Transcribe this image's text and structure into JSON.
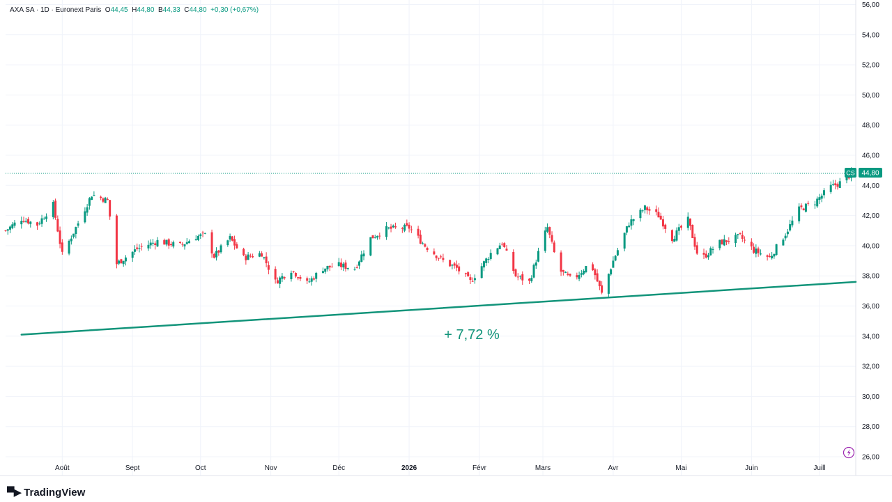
{
  "legend": {
    "symbol": "AXA SA",
    "sep1": "·",
    "interval": "1D",
    "sep2": "·",
    "exchange": "Euronext Paris",
    "open_label": "O",
    "open": "44,45",
    "high_label": "H",
    "high": "44,80",
    "low_label": "B",
    "low": "44,33",
    "close_label": "C",
    "close": "44,80",
    "change": "+0,30 (+0,67%)"
  },
  "price_tag": {
    "label": "CS",
    "value": "44,80"
  },
  "annotation": {
    "text": "+ 7,72 %"
  },
  "footer": {
    "brand": "TradingView"
  },
  "colors": {
    "up": "#089981",
    "down": "#f23645",
    "grid": "#f0f3fa",
    "trend": "#12947a"
  },
  "chart_data": {
    "type": "candlestick",
    "y_axis": {
      "min": 26,
      "max": 56,
      "ticks": [
        "56,00",
        "54,00",
        "52,00",
        "50,00",
        "48,00",
        "46,00",
        "44,00",
        "42,00",
        "40,00",
        "38,00",
        "36,00",
        "34,00",
        "32,00",
        "30,00",
        "28,00",
        "26,00"
      ]
    },
    "x_axis": {
      "start": "2025-07-07",
      "end": "2026-07-17",
      "ticks": [
        {
          "date": "2025-08-01",
          "label": "Août"
        },
        {
          "date": "2025-09-01",
          "label": "Sept"
        },
        {
          "date": "2025-10-01",
          "label": "Oct"
        },
        {
          "date": "2025-11-01",
          "label": "Nov"
        },
        {
          "date": "2025-12-01",
          "label": "Déc"
        },
        {
          "date": "2026-01-01",
          "label": "2026"
        },
        {
          "date": "2026-02-01",
          "label": "Févr"
        },
        {
          "date": "2026-03-01",
          "label": "Mars"
        },
        {
          "date": "2026-04-01",
          "label": "Avr"
        },
        {
          "date": "2026-05-01",
          "label": "Mai"
        },
        {
          "date": "2026-06-01",
          "label": "Juin"
        },
        {
          "date": "2026-07-01",
          "label": "Juill"
        }
      ]
    },
    "close_path": [
      [
        "2025-07-07",
        41.0
      ],
      [
        "2025-07-14",
        41.8
      ],
      [
        "2025-07-21",
        41.4
      ],
      [
        "2025-07-28",
        42.7
      ],
      [
        "2025-08-01",
        39.4
      ],
      [
        "2025-08-08",
        41.5
      ],
      [
        "2025-08-14",
        43.4
      ],
      [
        "2025-08-21",
        43.0
      ],
      [
        "2025-08-25",
        38.8
      ],
      [
        "2025-09-03",
        39.8
      ],
      [
        "2025-09-12",
        40.3
      ],
      [
        "2025-09-22",
        40.0
      ],
      [
        "2025-09-29",
        40.6
      ],
      [
        "2025-10-03",
        40.7
      ],
      [
        "2025-10-07",
        39.3
      ],
      [
        "2025-10-14",
        40.5
      ],
      [
        "2025-10-20",
        39.2
      ],
      [
        "2025-10-28",
        39.5
      ],
      [
        "2025-11-03",
        37.6
      ],
      [
        "2025-11-10",
        38.4
      ],
      [
        "2025-11-17",
        37.5
      ],
      [
        "2025-11-24",
        38.5
      ],
      [
        "2025-12-01",
        38.7
      ],
      [
        "2025-12-08",
        38.5
      ],
      [
        "2025-12-15",
        40.5
      ],
      [
        "2025-12-22",
        41.1
      ],
      [
        "2026-01-01",
        41.2
      ],
      [
        "2026-01-08",
        40.0
      ],
      [
        "2026-01-16",
        39.0
      ],
      [
        "2026-01-22",
        38.5
      ],
      [
        "2026-01-28",
        37.6
      ],
      [
        "2026-02-06",
        39.5
      ],
      [
        "2026-02-11",
        40.2
      ],
      [
        "2026-02-17",
        38.0
      ],
      [
        "2026-02-23",
        37.6
      ],
      [
        "2026-03-01",
        40.5
      ],
      [
        "2026-03-03",
        41.2
      ],
      [
        "2026-03-08",
        38.4
      ],
      [
        "2026-03-14",
        37.7
      ],
      [
        "2026-03-22",
        38.9
      ],
      [
        "2026-03-27",
        36.8
      ],
      [
        "2026-04-01",
        39.0
      ],
      [
        "2026-04-08",
        41.5
      ],
      [
        "2026-04-15",
        42.5
      ],
      [
        "2026-04-21",
        42.0
      ],
      [
        "2026-04-27",
        40.5
      ],
      [
        "2026-05-04",
        41.7
      ],
      [
        "2026-05-09",
        39.0
      ],
      [
        "2026-05-18",
        40.2
      ],
      [
        "2026-05-27",
        40.6
      ],
      [
        "2026-06-02",
        39.7
      ],
      [
        "2026-06-09",
        39.2
      ],
      [
        "2026-06-16",
        40.8
      ],
      [
        "2026-06-22",
        42.4
      ],
      [
        "2026-06-29",
        42.9
      ],
      [
        "2026-07-06",
        43.9
      ],
      [
        "2026-07-12",
        44.3
      ],
      [
        "2026-07-15",
        44.8
      ]
    ],
    "trendline": {
      "from": [
        "2025-07-14",
        34.1
      ],
      "to": [
        "2026-07-17",
        37.6
      ]
    },
    "last_price": 44.8
  }
}
